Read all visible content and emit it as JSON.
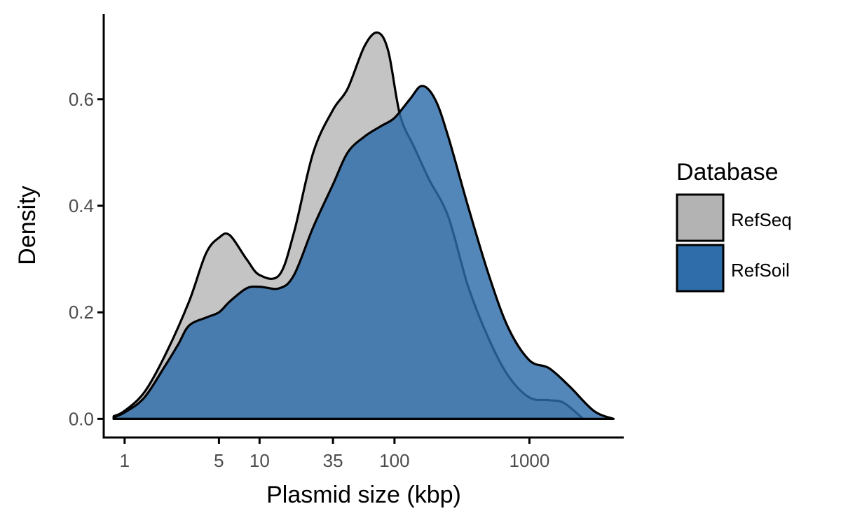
{
  "chart_data": {
    "type": "area",
    "title": "",
    "xlabel": "Plasmid size (kbp)",
    "ylabel": "Density",
    "x_scale": "log10",
    "xlim": [
      0.7,
      5000
    ],
    "ylim": [
      -0.035,
      0.76
    ],
    "x_ticks": [
      1,
      5,
      10,
      35,
      100,
      1000
    ],
    "x_tick_labels": [
      "1",
      "5",
      "10",
      "35",
      "100",
      "1000"
    ],
    "y_ticks": [
      0.0,
      0.2,
      0.4,
      0.6
    ],
    "y_tick_labels": [
      "0.0",
      "0.2",
      "0.4",
      "0.6"
    ],
    "grid": false,
    "legend": {
      "title": "Database",
      "position": "right"
    },
    "series": [
      {
        "name": "RefSeq",
        "color": "#b3b3b3",
        "x": [
          0.83,
          1.0,
          1.4,
          2.0,
          3.0,
          4.0,
          5.0,
          6.0,
          8.0,
          10.0,
          14.0,
          18.0,
          25.0,
          35.0,
          45.0,
          60.0,
          75.0,
          90.0,
          110.0,
          140.0,
          180.0,
          250.0,
          350.0,
          500.0,
          700.0,
          1000.0,
          1400.0,
          1800.0,
          2500.0
        ],
        "y": [
          0.005,
          0.015,
          0.05,
          0.12,
          0.22,
          0.31,
          0.34,
          0.345,
          0.3,
          0.27,
          0.27,
          0.35,
          0.5,
          0.58,
          0.62,
          0.7,
          0.725,
          0.69,
          0.57,
          0.51,
          0.45,
          0.38,
          0.25,
          0.15,
          0.08,
          0.04,
          0.035,
          0.03,
          0.0
        ]
      },
      {
        "name": "RefSoil",
        "color": "#2e6da9",
        "x": [
          0.83,
          1.0,
          1.4,
          2.0,
          2.5,
          3.0,
          4.0,
          5.0,
          6.0,
          8.0,
          10.0,
          14.0,
          18.0,
          25.0,
          35.0,
          45.0,
          60.0,
          80.0,
          100.0,
          130.0,
          160.0,
          200.0,
          250.0,
          350.0,
          500.0,
          700.0,
          1000.0,
          1400.0,
          2000.0,
          3000.0,
          4200.0
        ],
        "y": [
          0.003,
          0.012,
          0.04,
          0.1,
          0.14,
          0.175,
          0.19,
          0.2,
          0.22,
          0.245,
          0.248,
          0.245,
          0.27,
          0.36,
          0.44,
          0.5,
          0.53,
          0.55,
          0.565,
          0.6,
          0.625,
          0.6,
          0.53,
          0.4,
          0.27,
          0.17,
          0.11,
          0.095,
          0.06,
          0.015,
          0.0
        ]
      }
    ]
  }
}
